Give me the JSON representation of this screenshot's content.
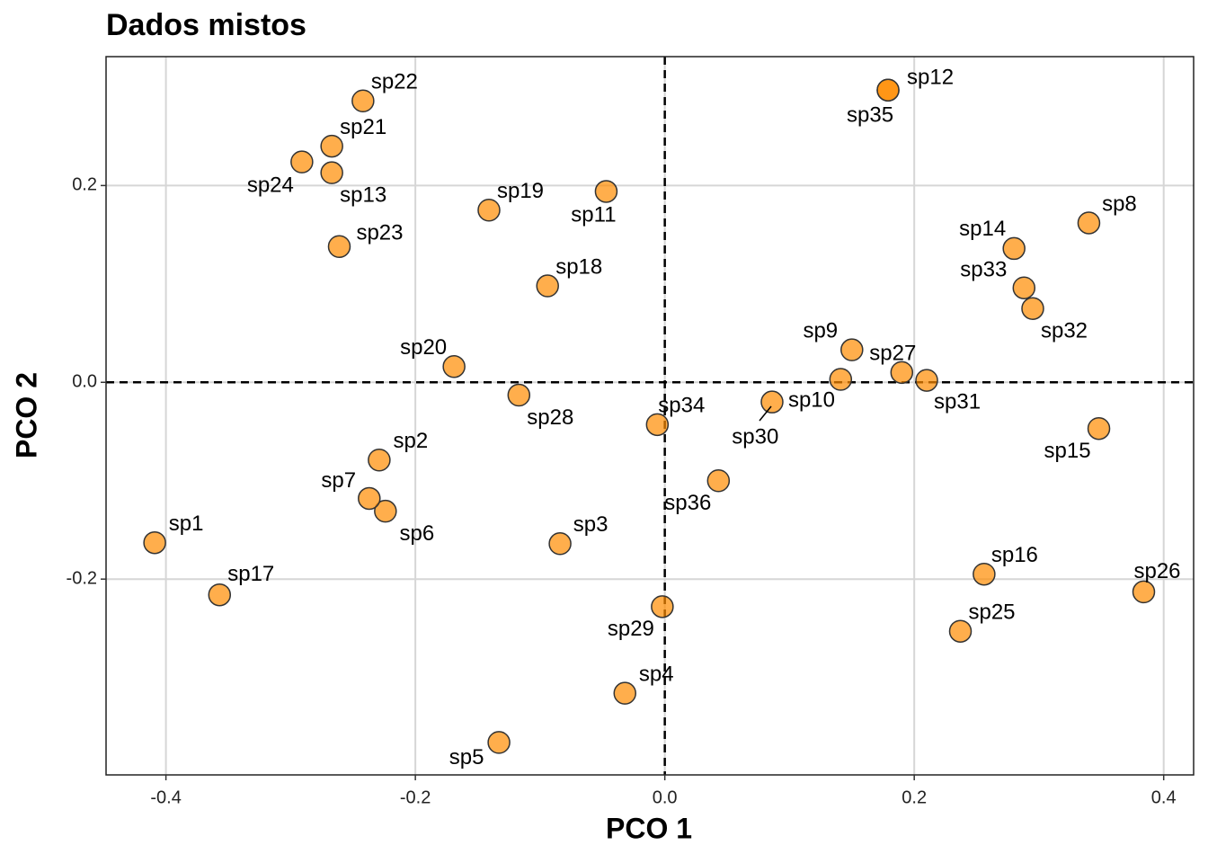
{
  "chart_data": {
    "type": "scatter",
    "title": "Dados mistos",
    "xlabel": "PCO 1",
    "ylabel": "PCO 2",
    "labels": [
      "sp1",
      "sp2",
      "sp3",
      "sp4",
      "sp5",
      "sp6",
      "sp7",
      "sp8",
      "sp9",
      "sp10",
      "sp11",
      "sp12",
      "sp13",
      "sp14",
      "sp15",
      "sp16",
      "sp17",
      "sp18",
      "sp19",
      "sp20",
      "sp21",
      "sp22",
      "sp23",
      "sp24",
      "sp25",
      "sp26",
      "sp27",
      "sp28",
      "sp29",
      "sp30",
      "sp31",
      "sp32",
      "sp33",
      "sp34",
      "sp35",
      "sp36"
    ],
    "x": [
      -0.409,
      -0.229,
      -0.084,
      -0.032,
      -0.133,
      -0.224,
      -0.237,
      0.34,
      0.15,
      0.086,
      -0.047,
      0.179,
      -0.267,
      0.28,
      0.348,
      0.256,
      -0.357,
      -0.094,
      -0.141,
      -0.169,
      -0.267,
      -0.242,
      -0.261,
      -0.291,
      0.237,
      0.384,
      0.19,
      -0.117,
      -0.002,
      0.141,
      0.21,
      0.295,
      0.288,
      -0.006,
      0.179,
      0.043
    ],
    "y": [
      -0.163,
      -0.079,
      -0.164,
      -0.316,
      -0.366,
      -0.131,
      -0.118,
      0.162,
      0.033,
      -0.02,
      0.194,
      0.297,
      0.213,
      0.136,
      -0.047,
      -0.195,
      -0.216,
      0.098,
      0.175,
      0.016,
      0.24,
      0.286,
      0.138,
      0.224,
      -0.253,
      -0.213,
      0.01,
      -0.013,
      -0.228,
      0.003,
      0.002,
      0.075,
      0.096,
      -0.043,
      0.297,
      -0.1
    ],
    "color": "#ff8c00",
    "xlim": [
      -0.448,
      0.424
    ],
    "ylim": [
      -0.399,
      0.331
    ],
    "xticks": [
      -0.4,
      -0.2,
      {
        "value": 0,
        "label": "0.0"
      },
      0.2,
      0.4
    ],
    "yticks": [
      -0.2,
      {
        "value": 0,
        "label": "0.0"
      },
      0.2
    ],
    "grid": true,
    "hline": 0,
    "vline": 0
  }
}
